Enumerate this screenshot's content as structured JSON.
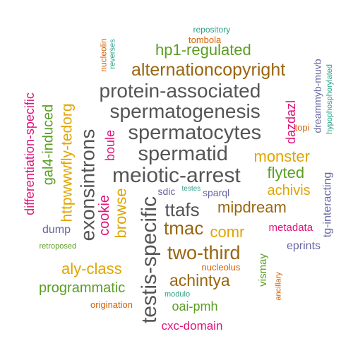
{
  "colors": {
    "gray": "#555555",
    "brown": "#996611",
    "gold": "#e0a500",
    "green": "#5a9e22",
    "magenta": "#e0147a",
    "purple": "#6666a0",
    "teal": "#2aa087",
    "orange": "#d95f02"
  },
  "words": [
    {
      "text": "repository",
      "color": "teal"
    },
    {
      "text": "tombola",
      "color": "orange"
    },
    {
      "text": "nucleolin",
      "color": "orange"
    },
    {
      "text": "reverses",
      "color": "teal"
    },
    {
      "text": "hp1-regulated",
      "color": "green"
    },
    {
      "text": "dreammyb-muvb",
      "color": "purple"
    },
    {
      "text": "hypophosphorylated",
      "color": "teal"
    },
    {
      "text": "alternationcopyright",
      "color": "brown"
    },
    {
      "text": "differentiation-specific",
      "color": "magenta"
    },
    {
      "text": "gal4-induced",
      "color": "green"
    },
    {
      "text": "httpwwwfly-tedorg",
      "color": "gold"
    },
    {
      "text": "protein-associated",
      "color": "gray"
    },
    {
      "text": "spermatogenesis",
      "color": "gray"
    },
    {
      "text": "exonsintrons",
      "color": "gray"
    },
    {
      "text": "boule",
      "color": "magenta"
    },
    {
      "text": "spermatocytes",
      "color": "gray"
    },
    {
      "text": "dazdazl",
      "color": "magenta"
    },
    {
      "text": "topi",
      "color": "orange"
    },
    {
      "text": "spermatid",
      "color": "gray"
    },
    {
      "text": "monster",
      "color": "gold"
    },
    {
      "text": "meiotic-arrest",
      "color": "gray"
    },
    {
      "text": "flyted",
      "color": "green"
    },
    {
      "text": "tg-interacting",
      "color": "purple"
    },
    {
      "text": "cookie",
      "color": "magenta"
    },
    {
      "text": "browse",
      "color": "gold"
    },
    {
      "text": "testis-specific",
      "color": "gray"
    },
    {
      "text": "sdic",
      "color": "purple"
    },
    {
      "text": "testes",
      "color": "teal"
    },
    {
      "text": "sparql",
      "color": "purple"
    },
    {
      "text": "achivis",
      "color": "gold"
    },
    {
      "text": "ttafs",
      "color": "gray"
    },
    {
      "text": "mipdream",
      "color": "brown"
    },
    {
      "text": "dump",
      "color": "purple"
    },
    {
      "text": "tmac",
      "color": "brown"
    },
    {
      "text": "comr",
      "color": "gold"
    },
    {
      "text": "metadata",
      "color": "magenta"
    },
    {
      "text": "retroposed",
      "color": "green"
    },
    {
      "text": "two-third",
      "color": "brown"
    },
    {
      "text": "vismay",
      "color": "green"
    },
    {
      "text": "eprints",
      "color": "purple"
    },
    {
      "text": "aly-class",
      "color": "gold"
    },
    {
      "text": "nucleolus",
      "color": "orange"
    },
    {
      "text": "achintya",
      "color": "brown"
    },
    {
      "text": "ancillary",
      "color": "orange"
    },
    {
      "text": "programmatic",
      "color": "green"
    },
    {
      "text": "modulo",
      "color": "teal"
    },
    {
      "text": "origination",
      "color": "orange"
    },
    {
      "text": "oai-pmh",
      "color": "green"
    },
    {
      "text": "cxc-domain",
      "color": "magenta"
    }
  ]
}
